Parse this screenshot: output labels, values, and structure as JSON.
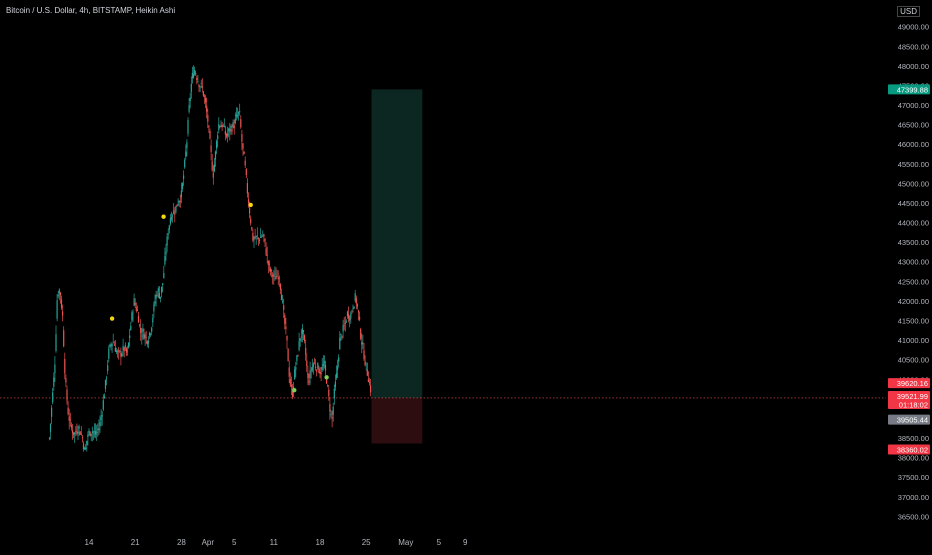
{
  "header": {
    "symbol_title": "Bitcoin / U.S. Dollar, 4h, BITSTAMP, Heikin Ashi",
    "currency": "USD"
  },
  "colors": {
    "background": "#000000",
    "up_candle": "#26a69a",
    "down_candle": "#ef5350",
    "profit_zone": "#0c2621",
    "loss_zone": "#2d0d0f",
    "marker_yellow": "#f5d90a",
    "marker_green": "#7cd15a",
    "current_price_line": "#ef5350",
    "target_tag": "#089981",
    "stop_tag": "#f23645",
    "current_tag": "#f23645",
    "grey_tag": "#787b86"
  },
  "chart_data": {
    "type": "candlestick",
    "candle_style": "Heikin Ashi",
    "timeframe": "4h",
    "exchange": "BITSTAMP",
    "ylim": [
      36000,
      49600
    ],
    "y_ticks": [
      36500,
      37000,
      37500,
      38000,
      38500,
      39000,
      39500,
      40000,
      40500,
      41000,
      41500,
      42000,
      42500,
      43000,
      43500,
      44000,
      44500,
      45000,
      45500,
      46000,
      46500,
      47000,
      47500,
      48000,
      48500,
      49000
    ],
    "y_tick_labels": [
      "36500.00",
      "37000.00",
      "37500.00",
      "38000.00",
      "38500.00",
      "39000.00",
      "39500.00",
      "40000.00",
      "40500.00",
      "41000.00",
      "41500.00",
      "42000.00",
      "42500.00",
      "43000.00",
      "43500.00",
      "44000.00",
      "44500.00",
      "45000.00",
      "45500.00",
      "46000.00",
      "46500.00",
      "47000.00",
      "47500.00",
      "48000.00",
      "48500.00",
      "49000.00"
    ],
    "x_ticks": [
      "14",
      "21",
      "28",
      "Apr",
      "5",
      "11",
      "18",
      "25",
      "May",
      "5",
      "9"
    ],
    "x_tick_day_index": [
      0,
      7,
      14,
      18,
      22,
      28,
      35,
      42,
      48,
      53,
      57
    ],
    "x_start_day": -6,
    "x_end_day": 62,
    "path_anchors": [
      [
        -6.0,
        38500
      ],
      [
        -5.6,
        39400
      ],
      [
        -5.2,
        40300
      ],
      [
        -4.8,
        42200
      ],
      [
        -4.4,
        42300
      ],
      [
        -4.0,
        41600
      ],
      [
        -3.6,
        40000
      ],
      [
        -3.2,
        39200
      ],
      [
        -2.8,
        38800
      ],
      [
        -2.2,
        38600
      ],
      [
        -1.6,
        38800
      ],
      [
        -1.0,
        38500
      ],
      [
        -0.6,
        38100
      ],
      [
        -0.2,
        38600
      ],
      [
        0.4,
        38700
      ],
      [
        1.0,
        38600
      ],
      [
        1.6,
        38800
      ],
      [
        2.0,
        39200
      ],
      [
        2.6,
        40000
      ],
      [
        3.0,
        40700
      ],
      [
        3.6,
        41000
      ],
      [
        4.0,
        40800
      ],
      [
        4.4,
        40600
      ],
      [
        5.0,
        40700
      ],
      [
        5.4,
        40800
      ],
      [
        5.8,
        40600
      ],
      [
        6.2,
        41200
      ],
      [
        6.8,
        42000
      ],
      [
        7.4,
        41700
      ],
      [
        7.8,
        41200
      ],
      [
        8.2,
        41200
      ],
      [
        8.8,
        41000
      ],
      [
        9.4,
        41300
      ],
      [
        10.0,
        42000
      ],
      [
        10.4,
        42300
      ],
      [
        10.8,
        42100
      ],
      [
        11.2,
        42500
      ],
      [
        11.6,
        43200
      ],
      [
        12.0,
        43800
      ],
      [
        12.4,
        44200
      ],
      [
        13.0,
        44300
      ],
      [
        13.6,
        44600
      ],
      [
        14.0,
        44700
      ],
      [
        14.4,
        45300
      ],
      [
        14.8,
        46000
      ],
      [
        15.2,
        47000
      ],
      [
        15.6,
        47700
      ],
      [
        16.0,
        47900
      ],
      [
        16.6,
        47600
      ],
      [
        17.2,
        47400
      ],
      [
        17.6,
        47100
      ],
      [
        18.0,
        46600
      ],
      [
        18.4,
        45900
      ],
      [
        18.8,
        45200
      ],
      [
        19.2,
        45800
      ],
      [
        19.6,
        46500
      ],
      [
        20.2,
        46500
      ],
      [
        20.8,
        46200
      ],
      [
        21.4,
        46400
      ],
      [
        22.0,
        46500
      ],
      [
        22.4,
        46700
      ],
      [
        22.8,
        46800
      ],
      [
        23.2,
        46000
      ],
      [
        23.6,
        45500
      ],
      [
        24.0,
        44800
      ],
      [
        24.4,
        44200
      ],
      [
        24.8,
        43600
      ],
      [
        25.2,
        43600
      ],
      [
        25.8,
        43600
      ],
      [
        26.4,
        43700
      ],
      [
        26.8,
        43300
      ],
      [
        27.2,
        42900
      ],
      [
        27.6,
        42700
      ],
      [
        28.2,
        42600
      ],
      [
        28.8,
        42700
      ],
      [
        29.2,
        42100
      ],
      [
        29.6,
        41500
      ],
      [
        30.0,
        40900
      ],
      [
        30.4,
        40000
      ],
      [
        30.8,
        39600
      ],
      [
        31.2,
        40200
      ],
      [
        31.6,
        40600
      ],
      [
        32.0,
        41100
      ],
      [
        32.4,
        41200
      ],
      [
        32.8,
        40700
      ],
      [
        33.2,
        39900
      ],
      [
        33.6,
        40200
      ],
      [
        34.0,
        40400
      ],
      [
        34.6,
        40300
      ],
      [
        35.2,
        40200
      ],
      [
        35.6,
        40400
      ],
      [
        36.0,
        40000
      ],
      [
        36.4,
        39400
      ],
      [
        36.8,
        38900
      ],
      [
        37.2,
        39700
      ],
      [
        37.6,
        40200
      ],
      [
        38.0,
        41000
      ],
      [
        38.4,
        41200
      ],
      [
        38.8,
        41400
      ],
      [
        39.2,
        41700
      ],
      [
        39.6,
        41600
      ],
      [
        40.0,
        41900
      ],
      [
        40.4,
        42100
      ],
      [
        40.8,
        41700
      ],
      [
        41.2,
        41100
      ],
      [
        41.6,
        40700
      ],
      [
        42.0,
        40300
      ],
      [
        42.4,
        40000
      ],
      [
        42.8,
        39620
      ]
    ],
    "markers": [
      {
        "day": 3.5,
        "price": 41550,
        "color": "yellow"
      },
      {
        "day": 11.3,
        "price": 44150,
        "color": "yellow"
      },
      {
        "day": 24.5,
        "price": 44450,
        "color": "yellow"
      },
      {
        "day": 31.1,
        "price": 39720,
        "color": "green"
      },
      {
        "day": 36.0,
        "price": 40050,
        "color": "green"
      }
    ],
    "position": {
      "type": "long",
      "entry": 39521.99,
      "target": 47399.88,
      "stop": 38360.02,
      "start_day": 42.8,
      "end_day": 50.5
    },
    "price_tags": [
      {
        "value": 47399.88,
        "label": "47399.88",
        "style": "target"
      },
      {
        "value": 39620.16,
        "label": "39620.16",
        "style": "current"
      },
      {
        "value": 39521.99,
        "label": "39521.99",
        "style": "current"
      },
      {
        "value": 38360.02,
        "label": "38360.02",
        "style": "stop"
      },
      {
        "value": 39505.44,
        "label": "39505.44",
        "style": "grey"
      }
    ],
    "countdown": "01:18:02",
    "current_price": 39521.99
  }
}
